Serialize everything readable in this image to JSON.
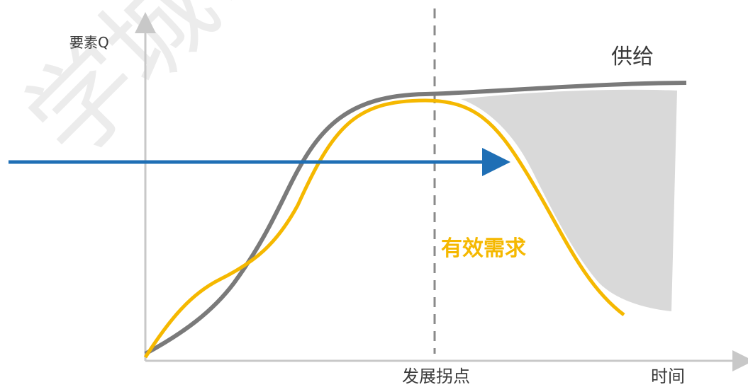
{
  "figure": {
    "y_axis_label": "要素Q",
    "x_axis_label": "时间",
    "inflection_label": "发展拐点",
    "supply_label": "供给",
    "demand_label": "有效需求",
    "watermark": "学城市化"
  },
  "colors": {
    "supply": "#7a7a7a",
    "demand": "#f5b800",
    "gap_fill": "#d9d9d9",
    "arrow": "#1f6fb5",
    "axis": "#c8c8c8",
    "divider": "#8a8a8a"
  }
}
